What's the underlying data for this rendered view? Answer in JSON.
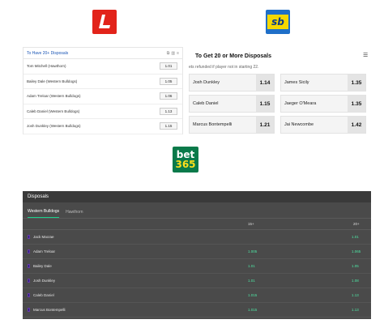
{
  "logos": {
    "ladbrokes": {
      "glyph": "L",
      "color": "#e2231a"
    },
    "sportsbet": {
      "text": "sb",
      "color": "#1f6fc8",
      "accent": "#f5d800"
    },
    "bet365": {
      "line1": "bet",
      "line2": "365",
      "color": "#0a7a4a",
      "accent": "#ffdf1b"
    }
  },
  "ladbrokes": {
    "title": "To Have 20+ Disposals",
    "tools": [
      "share-icon",
      "chart-icon",
      "menu-icon"
    ],
    "rows": [
      {
        "name": "Tom Mitchell (Hawthorn)",
        "odds": "1.01"
      },
      {
        "name": "Bailey Dale (Western Bulldogs)",
        "odds": "1.05"
      },
      {
        "name": "Adam Treloar (Western Bulldogs)",
        "odds": "1.06"
      },
      {
        "name": "Caleb Daniel (Western Bulldogs)",
        "odds": "1.13"
      },
      {
        "name": "Josh Dunkley (Western Bulldogs)",
        "odds": "1.15"
      }
    ]
  },
  "sportsbet": {
    "title": "To Get 20 or More Disposals",
    "subtitle": "ets refunded if player not in starting 22.",
    "icon": "list-icon",
    "cells": [
      {
        "name": "Josh Dunkley",
        "odds": "1.14"
      },
      {
        "name": "James Sicily",
        "odds": "1.35"
      },
      {
        "name": "Caleb Daniel",
        "odds": "1.15"
      },
      {
        "name": "Jaeger O'Meara",
        "odds": "1.35"
      },
      {
        "name": "Marcus Bontempelli",
        "odds": "1.21"
      },
      {
        "name": "Jai Newcombe",
        "odds": "1.42"
      }
    ]
  },
  "bet365": {
    "header": "Disposals",
    "tabs": [
      "Western Bulldogs",
      "Hawthorn"
    ],
    "columns": [
      "15+",
      "20+"
    ],
    "rows": [
      {
        "name": "Jack Macrae",
        "c15": "",
        "c20": "1.01"
      },
      {
        "name": "Adam Treloar",
        "c15": "1.005",
        "c20": "1.065"
      },
      {
        "name": "Bailey Dale",
        "c15": "1.01",
        "c20": "1.05"
      },
      {
        "name": "Josh Dunkley",
        "c15": "1.01",
        "c20": "1.08"
      },
      {
        "name": "Caleb Daniel",
        "c15": "1.015",
        "c20": "1.13"
      },
      {
        "name": "Marcus Bontempelli",
        "c15": "1.015",
        "c20": "1.13"
      }
    ]
  }
}
